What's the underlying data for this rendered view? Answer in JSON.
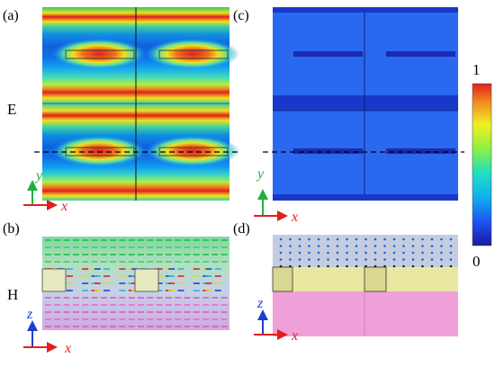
{
  "panels": {
    "a": {
      "label": "(a)"
    },
    "b": {
      "label": "(b)"
    },
    "c": {
      "label": "(c)"
    },
    "d": {
      "label": "(d)"
    }
  },
  "row_labels": {
    "E": "E",
    "H": "H"
  },
  "axes": {
    "a": {
      "x": "x",
      "y": "y"
    },
    "c": {
      "x": "x",
      "y": "y"
    },
    "b": {
      "x": "x",
      "z": "z"
    },
    "d": {
      "x": "x",
      "z": "z"
    }
  },
  "colorbar": {
    "max_label": "1",
    "min_label": "0",
    "colors": [
      "#1a1aa0",
      "#1f4ff0",
      "#10b0f0",
      "#20e0c0",
      "#90f040",
      "#f0f020",
      "#f09020",
      "#e02020"
    ]
  }
}
